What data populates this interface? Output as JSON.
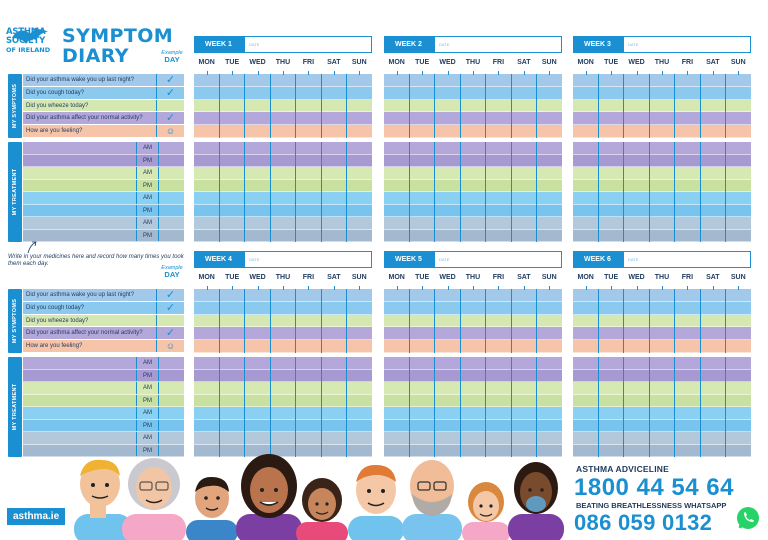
{
  "logo": {
    "lines": [
      "ASTHMA",
      "SOCIETY",
      "OF IRELAND"
    ]
  },
  "title": {
    "line1": "SYMPTOM",
    "line2": "DIARY"
  },
  "example": {
    "label": "Example",
    "day": "DAY"
  },
  "sidebar": {
    "symptoms": "MY SYMPTOMS",
    "treatment": "MY TREATMENT"
  },
  "questions": [
    "Did your asthma wake you up last night?",
    "Did you cough today?",
    "Did you wheeze today?",
    "Did your asthma affect your normal activity?",
    "How are you feeling?"
  ],
  "example_marks": [
    "✓",
    "✓",
    "",
    "✓",
    "☺"
  ],
  "ampm": [
    "AM",
    "PM",
    "AM",
    "PM",
    "AM",
    "PM",
    "AM",
    "PM"
  ],
  "note": "Write in your medicines here and record how many times you took them each day.",
  "days": [
    "MON",
    "TUE",
    "WED",
    "THU",
    "FRI",
    "SAT",
    "SUN"
  ],
  "date_label": "DATE",
  "weeks": [
    "WEEK 1",
    "WEEK 2",
    "WEEK 3",
    "WEEK 4",
    "WEEK 5",
    "WEEK 6"
  ],
  "footer": {
    "url": "asthma.ie",
    "adviceline_label": "ASTHMA ADVICELINE",
    "adviceline_number": "1800 44 54 64",
    "whatsapp_label": "BEATING BREATHLESSNESS WHATSAPP",
    "whatsapp_number": "086 059 0132"
  },
  "colors": {
    "brand_blue": "#1a8fd1",
    "navy_text": "#1e3a5f",
    "whatsapp_green": "#25d366"
  }
}
